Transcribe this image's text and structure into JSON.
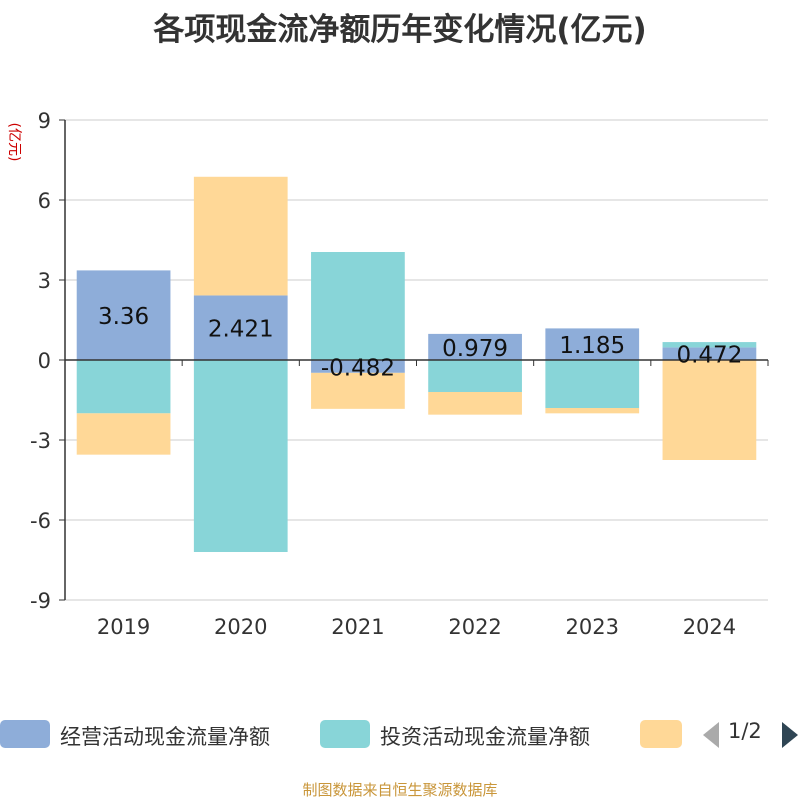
{
  "title": "各项现金流净额历年变化情况(亿元)",
  "source_note": "制图数据来自恒生聚源数据库",
  "legend": {
    "pager_text": "1/2"
  },
  "colors": {
    "operating": "#8eadd9",
    "investing": "#88d5d8",
    "financing": "#ffd897",
    "axis": "#333333",
    "grid": "#cccccc",
    "ylabel": "#cc0000",
    "pager_prev": "#aaaaaa",
    "pager_next": "#2f4554"
  },
  "chart_data": {
    "type": "bar",
    "stacked": true,
    "title": "各项现金流净额历年变化情况(亿元)",
    "ylabel": "(亿元)",
    "xlabel": "",
    "categories": [
      "2019",
      "2020",
      "2021",
      "2022",
      "2023",
      "2024"
    ],
    "ylim": [
      -9,
      9
    ],
    "yticks": [
      -9,
      -6,
      -3,
      0,
      3,
      6,
      9
    ],
    "grid": true,
    "legend_position": "bottom",
    "series": [
      {
        "name": "经营活动现金流量净额",
        "values": [
          3.36,
          2.421,
          -0.482,
          0.979,
          1.185,
          0.472
        ],
        "labels": [
          "3.36",
          "2.421",
          "-0.482",
          "0.979",
          "1.185",
          "0.472"
        ],
        "show_labels": true
      },
      {
        "name": "投资活动现金流量净额",
        "values": [
          -2.0,
          -7.2,
          4.05,
          -1.2,
          -1.8,
          0.2
        ]
      },
      {
        "name": "",
        "values": [
          -1.55,
          4.45,
          -1.35,
          -0.85,
          -0.2,
          -3.75
        ]
      }
    ]
  }
}
